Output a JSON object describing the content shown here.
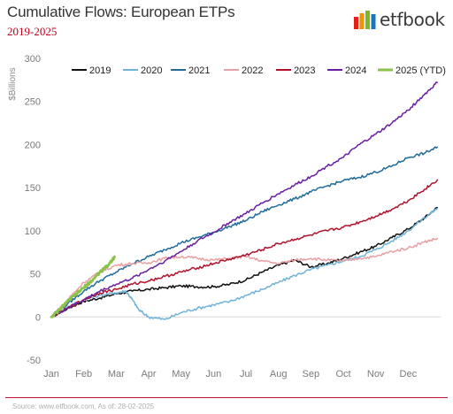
{
  "title": "Cumulative Flows: European ETPs",
  "subtitle": "2019-2025",
  "logo": {
    "text": "etfbook",
    "bar_colors": [
      "#e32119",
      "#f39200",
      "#7ab829",
      "#1b75bb"
    ]
  },
  "source": "Source: www.etfbook.com, As of: 28-02-2025",
  "chart_data": {
    "type": "line",
    "title": "Cumulative Flows: European ETPs",
    "subtitle": "2019-2025",
    "ylabel": "$Billions",
    "xlabel": "",
    "ylim": [
      -50,
      300
    ],
    "yticks": [
      -50,
      0,
      50,
      100,
      150,
      200,
      250,
      300
    ],
    "xlim": [
      0,
      12
    ],
    "xticks": [
      "Jan",
      "Feb",
      "Mar",
      "Apr",
      "May",
      "Jun",
      "Jul",
      "Aug",
      "Sep",
      "Oct",
      "Nov",
      "Dec"
    ],
    "legend_position": "top",
    "grid": false,
    "series": [
      {
        "name": "2019",
        "color": "#111111",
        "x": [
          0,
          0.5,
          1,
          1.5,
          2,
          2.5,
          3,
          3.5,
          4,
          4.5,
          5,
          5.5,
          6,
          6.5,
          7,
          7.5,
          8,
          8.5,
          9,
          9.5,
          10,
          10.5,
          11,
          11.5,
          11.9
        ],
        "y": [
          0,
          10,
          18,
          22,
          27,
          30,
          32,
          34,
          36,
          35,
          35,
          38,
          43,
          52,
          60,
          66,
          58,
          62,
          68,
          75,
          82,
          92,
          102,
          115,
          127
        ]
      },
      {
        "name": "2020",
        "color": "#6fb3d8",
        "x": [
          0,
          0.5,
          1,
          1.5,
          2,
          2.3,
          2.5,
          2.7,
          3,
          3.5,
          4,
          4.5,
          5,
          5.5,
          6,
          6.5,
          7,
          7.5,
          8,
          8.5,
          9,
          9.5,
          10,
          10.5,
          11,
          11.5,
          11.9
        ],
        "y": [
          0,
          12,
          20,
          25,
          28,
          30,
          20,
          8,
          0,
          -3,
          5,
          10,
          14,
          18,
          25,
          32,
          40,
          48,
          55,
          60,
          65,
          70,
          78,
          88,
          100,
          115,
          126
        ]
      },
      {
        "name": "2021",
        "color": "#1f6b9c",
        "x": [
          0,
          0.5,
          1,
          1.5,
          2,
          2.5,
          3,
          3.5,
          4,
          4.5,
          5,
          5.5,
          6,
          6.5,
          7,
          7.5,
          8,
          8.5,
          9,
          9.5,
          10,
          10.5,
          11,
          11.5,
          11.9
        ],
        "y": [
          0,
          15,
          30,
          42,
          52,
          62,
          70,
          78,
          86,
          92,
          98,
          105,
          112,
          122,
          130,
          137,
          145,
          152,
          158,
          162,
          168,
          175,
          185,
          190,
          197
        ]
      },
      {
        "name": "2022",
        "color": "#e8a0a2",
        "x": [
          0,
          0.5,
          1,
          1.5,
          2,
          2.5,
          3,
          3.5,
          4,
          4.5,
          5,
          5.5,
          6,
          6.5,
          7,
          7.5,
          8,
          8.5,
          9,
          9.5,
          10,
          10.5,
          11,
          11.5,
          11.9
        ],
        "y": [
          0,
          20,
          40,
          52,
          60,
          62,
          63,
          68,
          70,
          68,
          66,
          68,
          70,
          65,
          62,
          66,
          68,
          66,
          65,
          68,
          70,
          76,
          80,
          87,
          91
        ]
      },
      {
        "name": "2023",
        "color": "#b0122b",
        "x": [
          0,
          0.5,
          1,
          1.5,
          2,
          2.5,
          3,
          3.5,
          4,
          4.5,
          5,
          5.5,
          6,
          6.5,
          7,
          7.5,
          8,
          8.5,
          9,
          9.5,
          10,
          10.5,
          11,
          11.5,
          11.9
        ],
        "y": [
          0,
          10,
          20,
          28,
          32,
          38,
          42,
          47,
          52,
          57,
          62,
          67,
          72,
          78,
          85,
          90,
          95,
          100,
          104,
          110,
          117,
          125,
          135,
          148,
          159
        ]
      },
      {
        "name": "2024",
        "color": "#6a1fa0",
        "x": [
          0,
          0.5,
          1,
          1.5,
          2,
          2.5,
          3,
          3.5,
          4,
          4.5,
          5,
          5.5,
          6,
          6.5,
          7,
          7.5,
          8,
          8.5,
          9,
          9.5,
          10,
          10.5,
          11,
          11.5,
          11.9
        ],
        "y": [
          0,
          10,
          20,
          30,
          38,
          45,
          55,
          65,
          76,
          88,
          98,
          110,
          120,
          132,
          143,
          153,
          163,
          175,
          185,
          200,
          212,
          225,
          240,
          258,
          272
        ]
      },
      {
        "name": "2025 (YTD)",
        "color": "#8bc34a",
        "x": [
          0,
          0.25,
          0.5,
          0.75,
          1,
          1.25,
          1.5,
          1.75,
          1.95
        ],
        "y": [
          0,
          8,
          18,
          26,
          34,
          42,
          52,
          60,
          70
        ]
      }
    ]
  }
}
